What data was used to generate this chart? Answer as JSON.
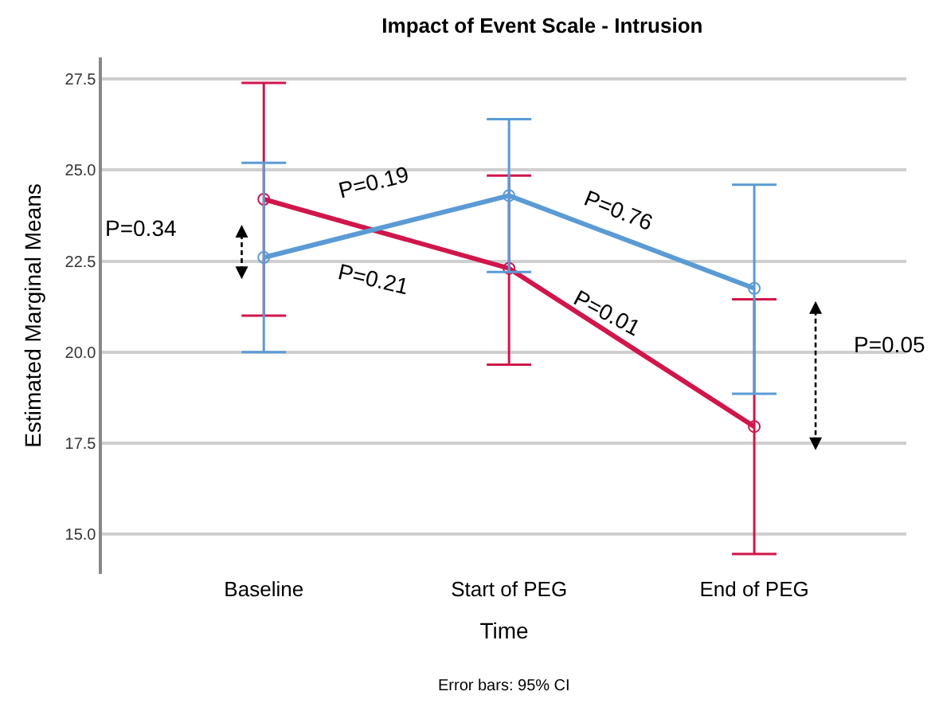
{
  "chart_data": {
    "type": "line",
    "title": "Impact of Event Scale - Intrusion",
    "xlabel": "Time",
    "ylabel": "Estimated Marginal Means",
    "categories": [
      "Baseline",
      "Start of PEG",
      "End of PEG"
    ],
    "series": [
      {
        "color": "#d0164a",
        "values": [
          24.2,
          22.3,
          17.95
        ],
        "errors": [
          [
            21.0,
            27.4
          ],
          [
            19.65,
            24.85
          ],
          [
            14.45,
            21.45
          ]
        ]
      },
      {
        "color": "#5b9bd5",
        "values": [
          22.6,
          24.3,
          21.75
        ],
        "errors": [
          [
            20.0,
            25.2
          ],
          [
            22.2,
            26.4
          ],
          [
            18.85,
            24.6
          ]
        ]
      }
    ],
    "ylim": [
      13.9,
      28.1
    ],
    "yticks": [
      {
        "value": 15,
        "label": "15.0"
      },
      {
        "value": 17.5,
        "label": "17.5"
      },
      {
        "value": 20,
        "label": "20.0"
      },
      {
        "value": 22.5,
        "label": "22.5"
      },
      {
        "value": 25,
        "label": "25.0"
      },
      {
        "value": 27.5,
        "label": "27.5"
      }
    ],
    "grid": "y",
    "marker": "circle",
    "line_style": "solid",
    "annotations": [
      "P=0.34",
      "P=0.19",
      "P=0.21",
      "P=0.76",
      "P=0.01",
      "P=0.05",
      "Error bars: 95% CI"
    ]
  }
}
